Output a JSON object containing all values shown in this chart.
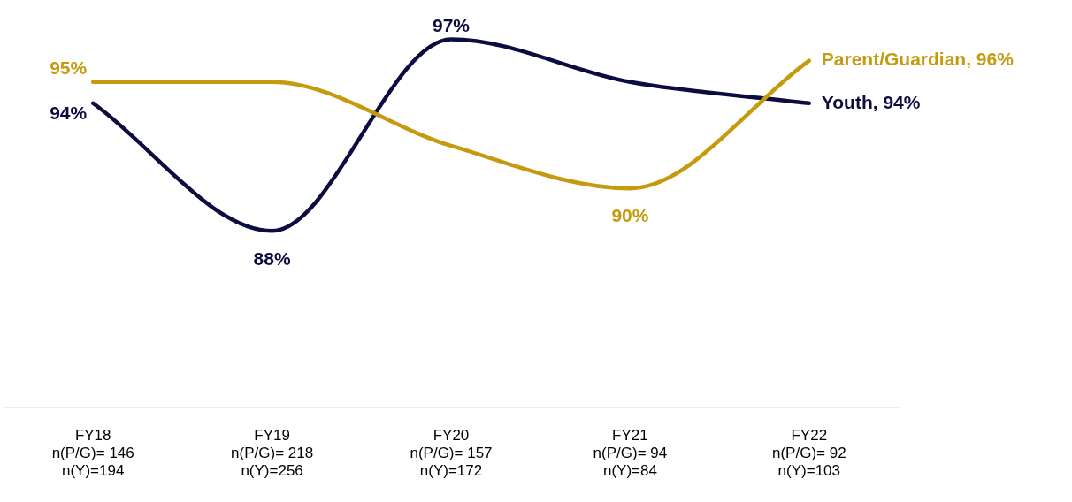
{
  "chart_data": {
    "type": "line",
    "categories": [
      "FY18\nn(P/G)= 146\nn(Y)=194",
      "FY19\nn(P/G)= 218\nn(Y)=256",
      "FY20\nn(P/G)= 157\nn(Y)=172",
      "FY21\nn(P/G)= 94\nn(Y)=84",
      "FY22\nn(P/G)= 92\nn(Y)=103"
    ],
    "series": [
      {
        "color": "#c59a0f",
        "values": [
          95,
          95,
          92,
          90,
          96
        ],
        "value_labels": [
          "95%",
          null,
          null,
          "90%",
          "Parent/Guardian, 96%"
        ]
      },
      {
        "color": "#0c0c40",
        "values": [
          94,
          88,
          97,
          95,
          94
        ],
        "value_labels": [
          "94%",
          "88%",
          "97%",
          null,
          "Youth, 94%"
        ]
      }
    ],
    "tick_labels": "x",
    "grid": false,
    "legend": false,
    "marker": "none",
    "line_style": "solid"
  }
}
